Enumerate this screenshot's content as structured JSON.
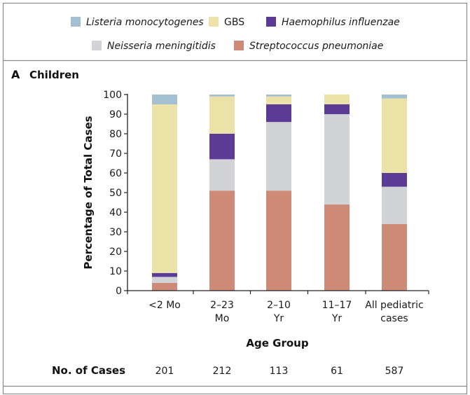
{
  "legend": [
    {
      "key": "listeria",
      "label": "Listeria monocytogenes",
      "italic": true
    },
    {
      "key": "gbs",
      "label": "GBS",
      "italic": false
    },
    {
      "key": "haemophilus",
      "label": "Haemophilus influenzae",
      "italic": true
    },
    {
      "key": "neisseria",
      "label": "Neisseria meningitidis",
      "italic": true
    },
    {
      "key": "strep",
      "label": "Streptococcus pneumoniae",
      "italic": true
    }
  ],
  "colors": {
    "listeria": "#a3c0d2",
    "gbs": "#ece1a7",
    "haemophilus": "#5c3b97",
    "neisseria": "#d1d3d6",
    "strep": "#cd8a76",
    "frame": "#8a8a8a",
    "axis": "#222222"
  },
  "panel": {
    "letter": "A",
    "title": "Children"
  },
  "chart_data": {
    "type": "bar",
    "stacked": true,
    "categories": [
      [
        "<2 Mo"
      ],
      [
        "2–23",
        "Mo"
      ],
      [
        "2–10",
        "Yr"
      ],
      [
        "11–17",
        "Yr"
      ],
      [
        "All pediatric",
        "cases"
      ]
    ],
    "series": [
      {
        "name": "Streptococcus pneumoniae",
        "key": "strep",
        "values": [
          4,
          51,
          51,
          44,
          34
        ]
      },
      {
        "name": "Neisseria meningitidis",
        "key": "neisseria",
        "values": [
          3,
          16,
          35,
          46,
          19
        ]
      },
      {
        "name": "Haemophilus influenzae",
        "key": "haemophilus",
        "values": [
          2,
          13,
          9,
          5,
          7
        ]
      },
      {
        "name": "GBS",
        "key": "gbs",
        "values": [
          86,
          19,
          4,
          5,
          38
        ]
      },
      {
        "name": "Listeria monocytogenes",
        "key": "listeria",
        "values": [
          5,
          1,
          1,
          0,
          2
        ]
      }
    ],
    "ylabel": "Percentage of Total Cases",
    "xlabel": "Age Group",
    "ylim": [
      0,
      100
    ],
    "yticks": [
      0,
      10,
      20,
      30,
      40,
      50,
      60,
      70,
      80,
      90,
      100
    ],
    "legend_position": "top",
    "grid": false
  },
  "cases": {
    "label": "No. of Cases",
    "values": [
      "201",
      "212",
      "113",
      "61",
      "587"
    ]
  }
}
